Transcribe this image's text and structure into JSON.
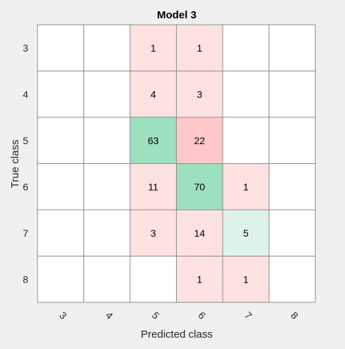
{
  "chart_data": {
    "type": "heatmap",
    "title": "Model 3",
    "xlabel": "Predicted class",
    "ylabel": "True class",
    "x_categories": [
      "3",
      "4",
      "5",
      "6",
      "7",
      "8"
    ],
    "y_categories": [
      "3",
      "4",
      "5",
      "6",
      "7",
      "8"
    ],
    "matrix": [
      [
        0,
        0,
        1,
        1,
        0,
        0
      ],
      [
        0,
        0,
        4,
        3,
        0,
        0
      ],
      [
        0,
        0,
        63,
        22,
        0,
        0
      ],
      [
        0,
        0,
        11,
        70,
        1,
        0
      ],
      [
        0,
        0,
        3,
        14,
        5,
        0
      ],
      [
        0,
        0,
        0,
        1,
        1,
        0
      ]
    ],
    "colors": {
      "correct_strong": "#9de0bf",
      "correct_light": "#def3ea",
      "error_strong": "#fec8c8",
      "error_light": "#fee1e1",
      "empty": "#ffffff",
      "grid": "#8c8c8c",
      "background": "#f0f0f0"
    }
  }
}
